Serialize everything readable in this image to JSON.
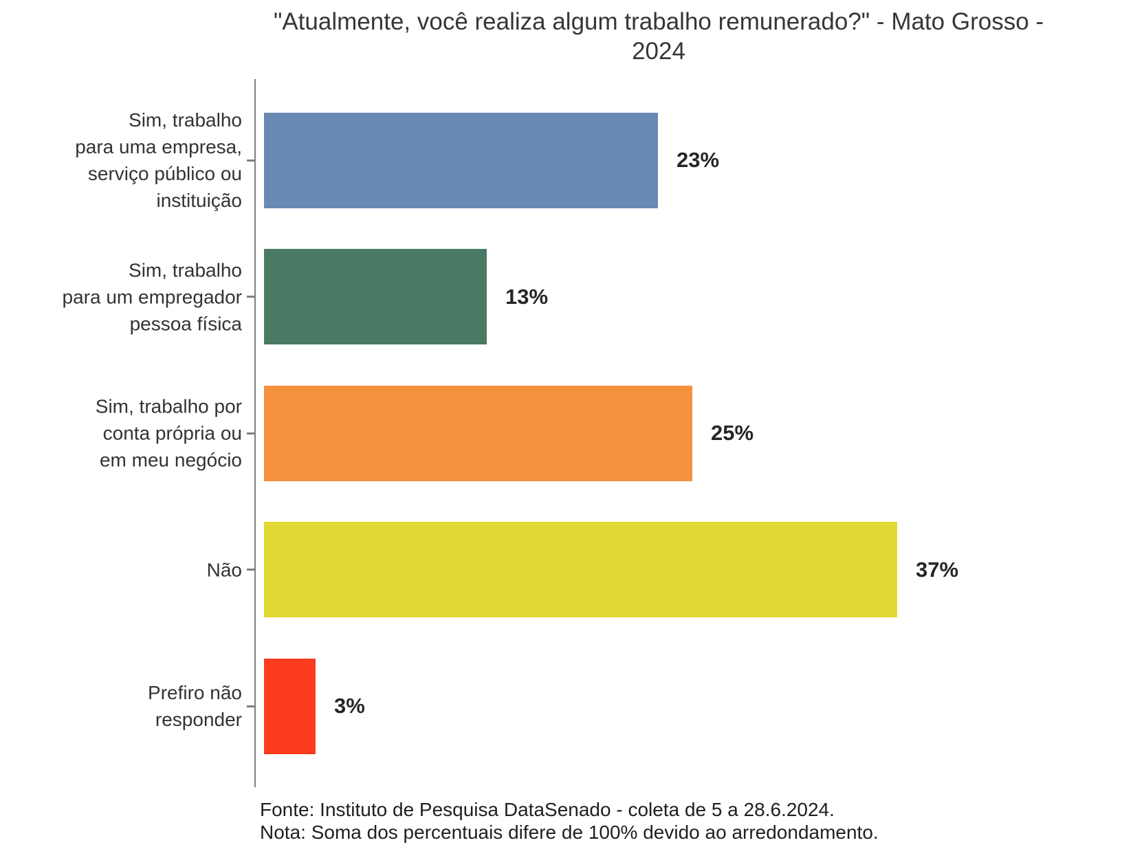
{
  "title": "\"Atualmente, você realiza algum trabalho remunerado?\" - Mato Grosso - 2024",
  "chart_data": {
    "type": "bar",
    "orientation": "horizontal",
    "title": "\"Atualmente, você realiza algum trabalho remunerado?\" - Mato Grosso - 2024",
    "categories": [
      "Sim, trabalho para uma empresa, serviço público ou instituição",
      "Sim, trabalho para um empregador pessoa física",
      "Sim, trabalho por conta própria ou em meu negócio",
      "Não",
      "Prefiro não responder"
    ],
    "label_lines": [
      [
        "Sim, trabalho",
        "para uma empresa,",
        "serviço público ou",
        "instituição"
      ],
      [
        "Sim, trabalho",
        "para um empregador",
        "pessoa física"
      ],
      [
        "Sim, trabalho por",
        "conta própria ou",
        "em meu negócio"
      ],
      [
        "Não"
      ],
      [
        "Prefiro não",
        "responder"
      ]
    ],
    "values": [
      23,
      13,
      25,
      37,
      3
    ],
    "value_labels": [
      "23%",
      "13%",
      "25%",
      "37%",
      "3%"
    ],
    "bar_colors": [
      "#6889B1",
      "#4A7A63",
      "#F6913D",
      "#E2D833",
      "#FB3C1E"
    ],
    "xlim": [
      0,
      40
    ],
    "grid": false,
    "legend": false,
    "axis_color": "#7f7f7f",
    "source": "Fonte: Instituto de Pesquisa DataSenado - coleta de 5 a 28.6.2024.",
    "note": "Nota: Soma dos percentuais difere de 100% devido ao arredondamento."
  },
  "footer": {
    "source": "Fonte: Instituto de Pesquisa DataSenado - coleta de 5 a 28.6.2024.",
    "note": "Nota: Soma dos percentuais difere de 100% devido ao arredondamento."
  }
}
